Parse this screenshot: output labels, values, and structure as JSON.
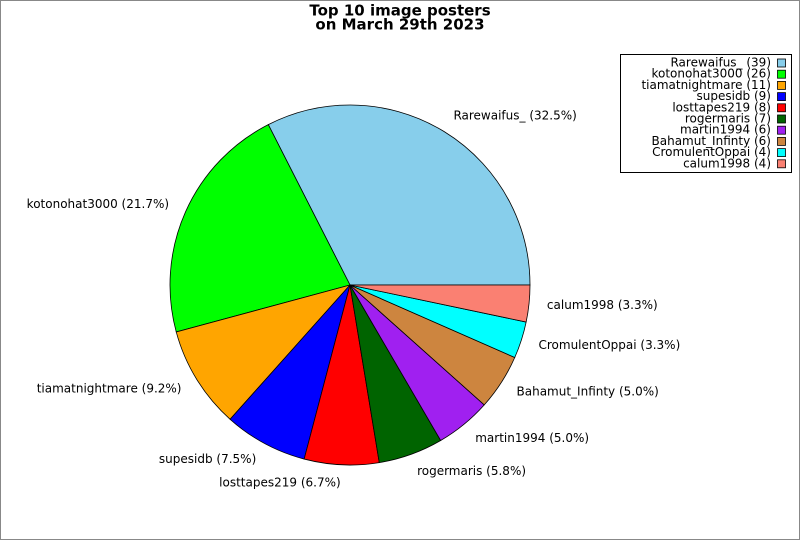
{
  "chart_data": {
    "type": "pie",
    "title": [
      "Top 10 image posters",
      "on March 29th 2023"
    ],
    "categories": [
      "Rarewaifus_ (32.5%)",
      "kotonohat3000 (21.7%)",
      "tiamatnightmare (9.2%)",
      "supesidb (7.5%)",
      "losttapes219 (6.7%)",
      "rogermaris (5.8%)",
      "martin1994 (5.0%)",
      "Bahamut_Infinty (5.0%)",
      "CromulentOppai (3.3%)",
      "calum1998 (3.3%)"
    ],
    "values": [
      32.5,
      21.7,
      9.2,
      7.5,
      6.7,
      5.8,
      5.0,
      5.0,
      3.3,
      3.3
    ],
    "colors": [
      "#87ceeb",
      "#00ff00",
      "#ffa500",
      "#0000ff",
      "#ff0000",
      "#006400",
      "#a020f0",
      "#cd853f",
      "#00ffff",
      "#fa8072"
    ],
    "legend_labels": [
      "Rarewaifus_  (39)",
      "kotonohat3000 (26)",
      "tiamatnightmare (11)",
      "supesidb (9)",
      "losttapes219 (8)",
      "rogermaris (7)",
      "martin1994 (6)",
      "Bahamut_Infinty (6)",
      "CromulentOppai (4)",
      "calum1998 (4)"
    ],
    "legend_position": "upper right"
  }
}
